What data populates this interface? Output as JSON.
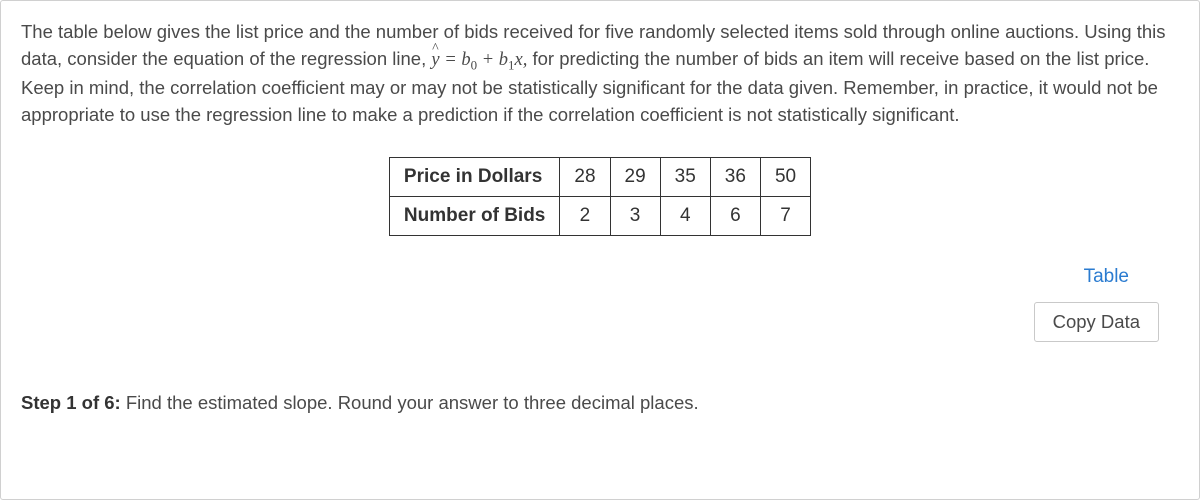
{
  "prompt": {
    "text_before_eq": "The table below gives the list price and the number of bids received for five randomly selected items sold through online auctions. Using this data, consider the equation of the regression line, ",
    "equation_parts": {
      "yhat": "y",
      "equals": " = ",
      "b0": "b",
      "sub0": "0",
      "plus": " + ",
      "b1": "b",
      "sub1": "1",
      "x": "x,"
    },
    "text_after_eq": " for predicting the number of bids an item will receive based on the list price. Keep in mind, the correlation coefficient may or may not be statistically significant for the data given. Remember, in practice, it would not be appropriate to use the regression line to make a prediction if the correlation coefficient is not statistically significant."
  },
  "table": {
    "type": "table",
    "row_headers": [
      "Price in Dollars",
      "Number of Bids"
    ],
    "rows": [
      [
        "28",
        "29",
        "35",
        "36",
        "50"
      ],
      [
        "2",
        "3",
        "4",
        "6",
        "7"
      ]
    ],
    "border_color": "#333333",
    "header_fontweight": 700,
    "cell_fontsize": 19
  },
  "actions": {
    "table_link": "Table",
    "copy_button": "Copy Data",
    "link_color": "#2a7bd0"
  },
  "step": {
    "label": "Step 1 of 6:",
    "text": " Find the estimated slope. Round your answer to three decimal places."
  }
}
